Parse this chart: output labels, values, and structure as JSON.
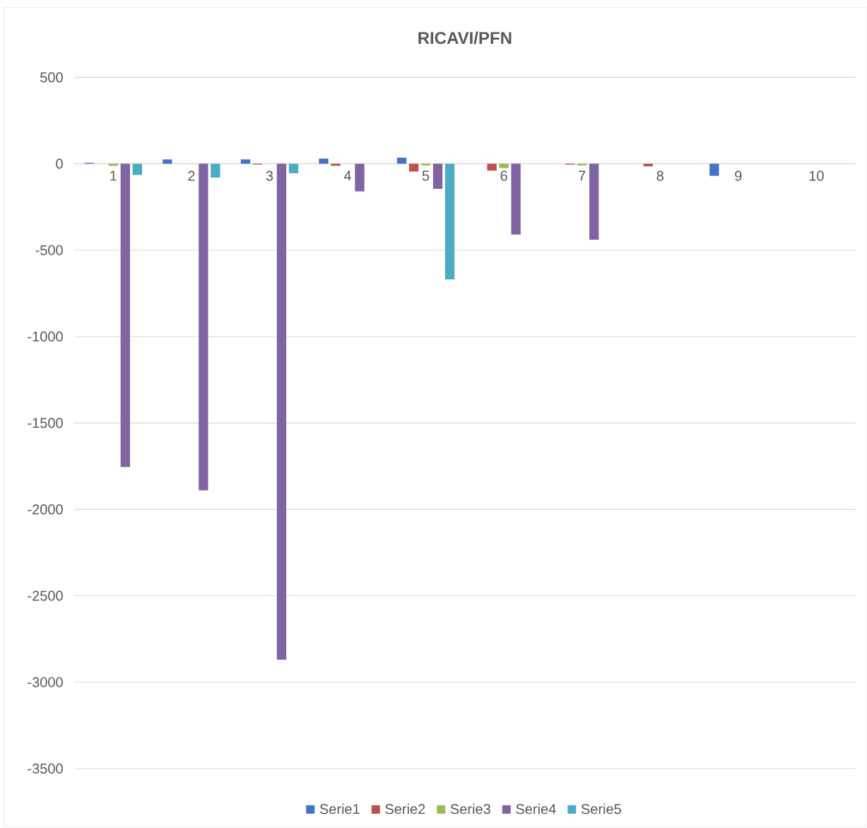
{
  "chart_data": {
    "type": "bar",
    "title": "RICAVI/PFN",
    "categories": [
      "1",
      "2",
      "3",
      "4",
      "5",
      "6",
      "7",
      "8",
      "9",
      "10"
    ],
    "series": [
      {
        "name": "Serie1",
        "color": "#4472c4",
        "values": [
          5,
          25,
          25,
          30,
          35,
          0,
          0,
          0,
          -70,
          0
        ]
      },
      {
        "name": "Serie2",
        "color": "#c0504d",
        "values": [
          0,
          null,
          -5,
          -12,
          -45,
          -40,
          -5,
          -15,
          null,
          0
        ]
      },
      {
        "name": "Serie3",
        "color": "#9bbb59",
        "values": [
          -12,
          0,
          0,
          0,
          -10,
          -25,
          -10,
          0,
          0,
          0
        ]
      },
      {
        "name": "Serie4",
        "color": "#8064a2",
        "values": [
          -1755,
          -1890,
          -2870,
          -160,
          -145,
          -410,
          -440,
          0,
          0,
          0
        ]
      },
      {
        "name": "Serie5",
        "color": "#4bacc6",
        "values": [
          -65,
          -80,
          -55,
          0,
          -670,
          0,
          0,
          0,
          0,
          0
        ]
      }
    ],
    "ylim": [
      -3500,
      500
    ],
    "yticks": [
      -3500,
      -3000,
      -2500,
      -2000,
      -1500,
      -1000,
      -500,
      0,
      500
    ],
    "grid": "y",
    "legend": "bottom"
  }
}
